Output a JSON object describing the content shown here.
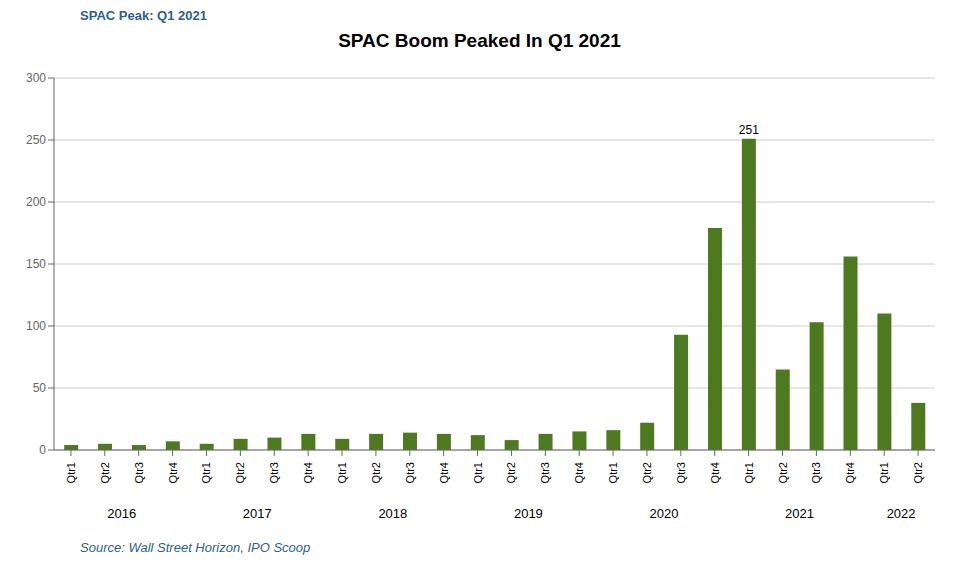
{
  "chart_data": {
    "type": "bar",
    "title": "SPAC Boom Peaked In Q1 2021",
    "subtitle": "SPAC Peak: Q1 2021",
    "source": "Source: Wall Street Horizon, IPO Scoop",
    "categories": [
      "Qtr1",
      "Qtr2",
      "Qtr3",
      "Qtr4",
      "Qtr1",
      "Qtr2",
      "Qtr3",
      "Qtr4",
      "Qtr1",
      "Qtr2",
      "Qtr3",
      "Qtr4",
      "Qtr1",
      "Qtr2",
      "Qtr3",
      "Qtr4",
      "Qtr1",
      "Qtr2",
      "Qtr3",
      "Qtr4",
      "Qtr1",
      "Qtr2",
      "Qtr3",
      "Qtr4",
      "Qtr1",
      "Qtr2"
    ],
    "x_groups": [
      "2016",
      "2016",
      "2016",
      "2016",
      "2017",
      "2017",
      "2017",
      "2017",
      "2018",
      "2018",
      "2018",
      "2018",
      "2019",
      "2019",
      "2019",
      "2019",
      "2020",
      "2020",
      "2020",
      "2020",
      "2021",
      "2021",
      "2021",
      "2021",
      "2022",
      "2022"
    ],
    "values": [
      4,
      5,
      4,
      7,
      5,
      9,
      10,
      13,
      9,
      13,
      14,
      13,
      12,
      8,
      13,
      15,
      16,
      22,
      93,
      179,
      251,
      65,
      103,
      156,
      110,
      38
    ],
    "value_labels": [
      null,
      null,
      null,
      null,
      null,
      null,
      null,
      null,
      null,
      null,
      null,
      null,
      null,
      null,
      null,
      null,
      null,
      null,
      null,
      null,
      "251",
      null,
      null,
      null,
      null,
      null
    ],
    "color": "#4d7a1f",
    "ylim": [
      0,
      300
    ],
    "yticks": [
      0,
      50,
      100,
      150,
      200,
      250,
      300
    ],
    "grid": true
  }
}
